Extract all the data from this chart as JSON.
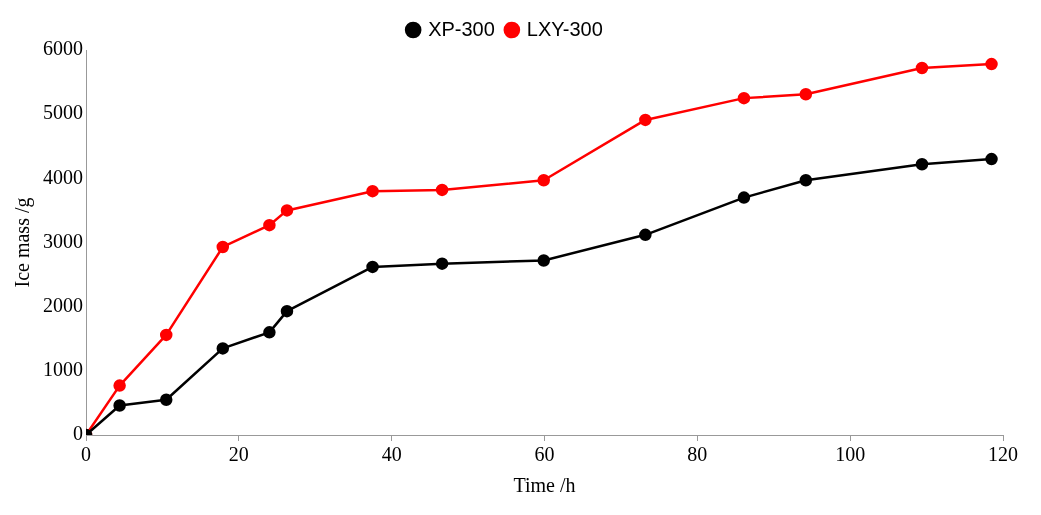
{
  "chart_data": {
    "type": "line",
    "xlabel": "Time /h",
    "ylabel": "Ice mass /g",
    "xlim": [
      0,
      120
    ],
    "xticks": [
      0,
      20,
      40,
      60,
      80,
      100,
      120
    ],
    "ylim": [
      0,
      6000
    ],
    "yticks": [
      0,
      1000,
      2000,
      3000,
      4000,
      5000,
      6000
    ],
    "x": [
      0,
      4.4,
      10.5,
      17.9,
      24.0,
      26.3,
      37.5,
      46.6,
      59.9,
      73.2,
      86.1,
      94.2,
      109.4,
      118.5
    ],
    "series": [
      {
        "name": "XP-300",
        "color": "#000000",
        "values": [
          0,
          460,
          550,
          1350,
          1600,
          1930,
          2620,
          2670,
          2720,
          3120,
          3700,
          3970,
          4220,
          4300
        ]
      },
      {
        "name": "LXY-300",
        "color": "#ff0000",
        "values": [
          0,
          770,
          1560,
          2930,
          3270,
          3500,
          3800,
          3820,
          3970,
          4910,
          5250,
          5310,
          5720,
          5780
        ]
      }
    ],
    "marker": "circle",
    "line_style": "solid",
    "grid": false,
    "legend": "top"
  }
}
